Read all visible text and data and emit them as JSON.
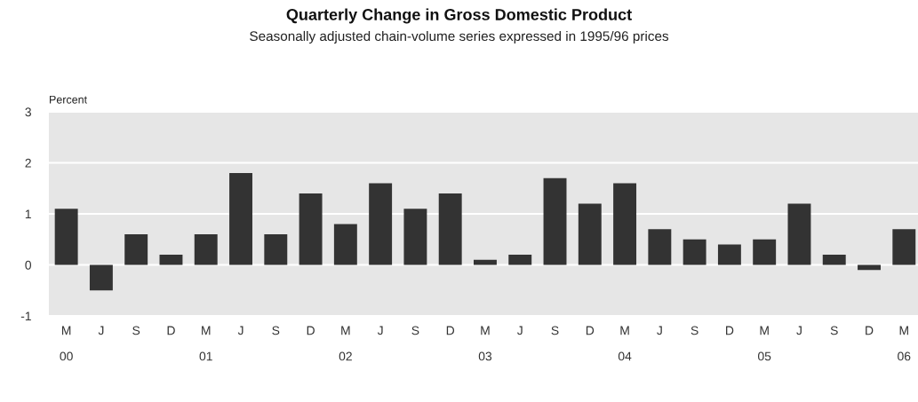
{
  "chart_data": {
    "type": "bar",
    "title": "Quarterly Change in Gross Domestic Product",
    "subtitle": "Seasonally adjusted chain-volume series expressed in 1995/96 prices",
    "ylabel": "Percent",
    "categories": [
      "M\n00",
      "J",
      "S",
      "D",
      "M\n01",
      "J",
      "S",
      "D",
      "M\n02",
      "J",
      "S",
      "D",
      "M\n03",
      "J",
      "S",
      "D",
      "M\n04",
      "J",
      "S",
      "D",
      "M\n05",
      "J",
      "S",
      "D",
      "M\n06"
    ],
    "values": [
      1.1,
      -0.5,
      0.6,
      0.2,
      0.6,
      1.8,
      0.6,
      1.4,
      0.8,
      1.6,
      1.1,
      1.4,
      0.1,
      0.2,
      1.7,
      1.2,
      1.6,
      0.7,
      0.5,
      0.4,
      0.5,
      1.2,
      0.2,
      -0.1,
      0.7
    ],
    "color": "#333333",
    "ylim": [
      -1,
      3
    ],
    "yticks": [
      -1,
      0,
      1,
      2,
      3
    ],
    "grid": "y",
    "legend": false
  }
}
